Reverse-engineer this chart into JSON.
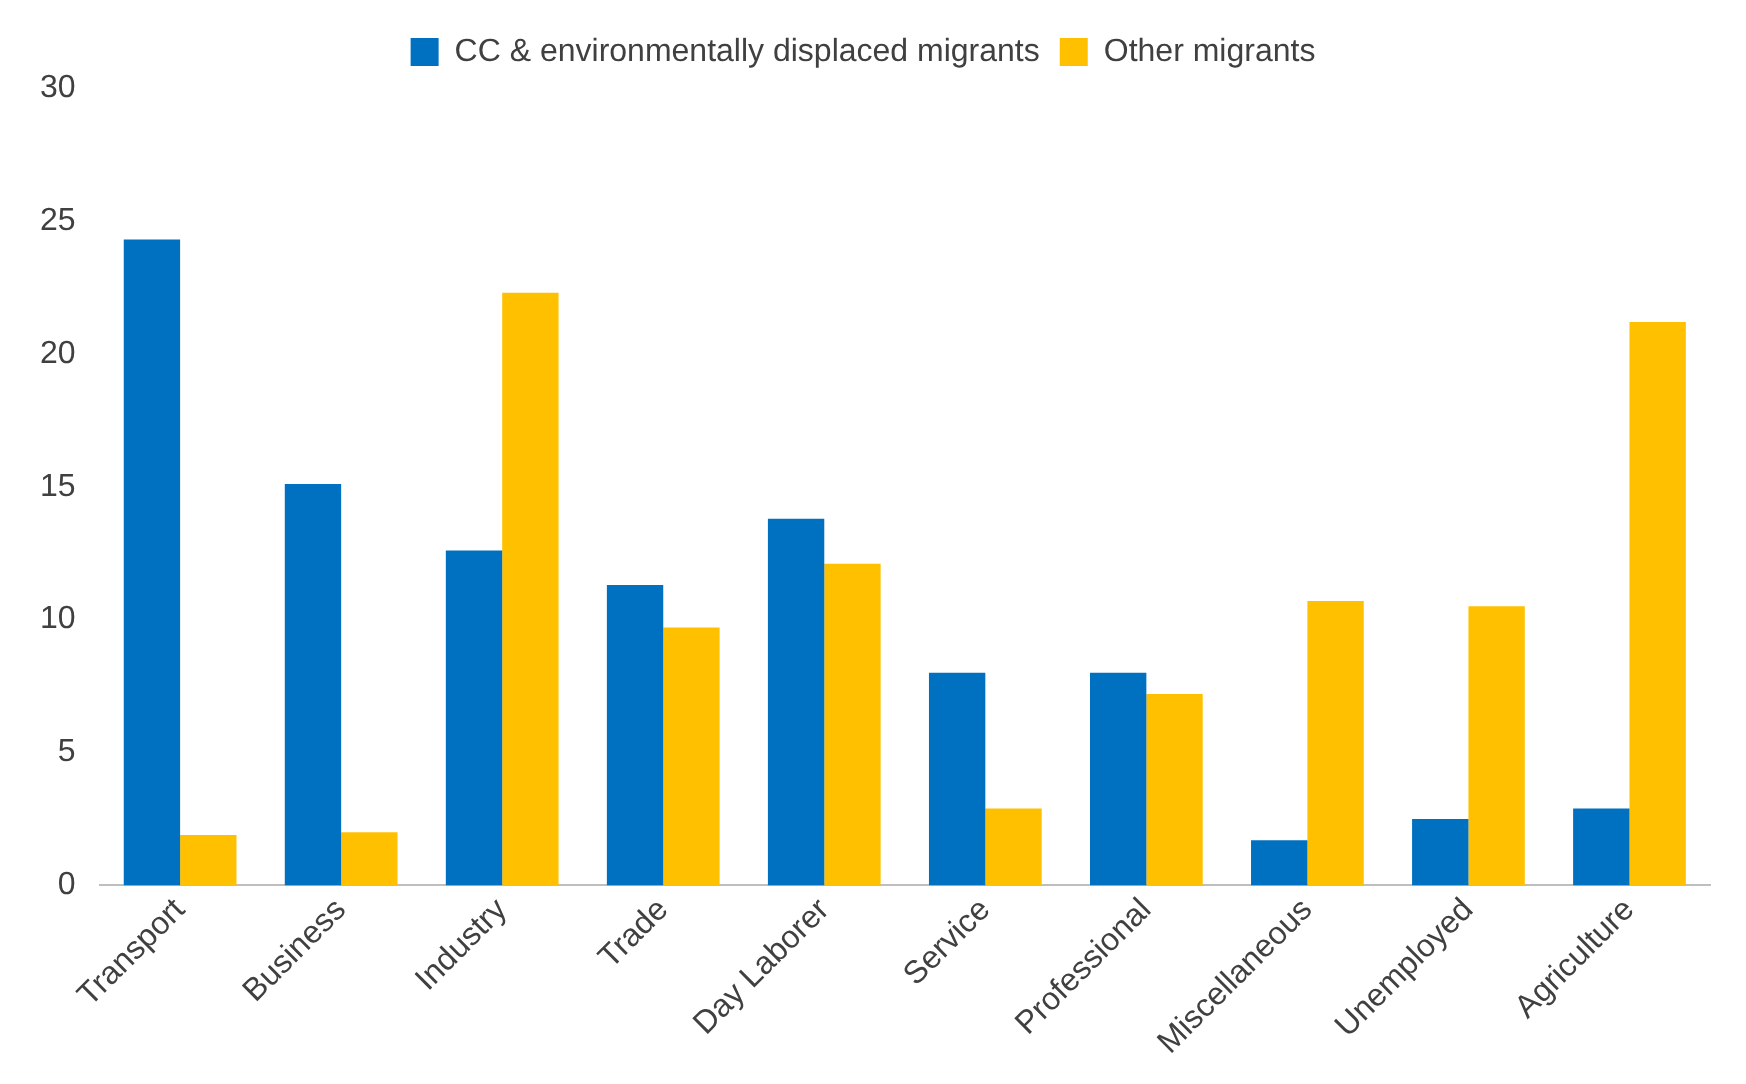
{
  "chart_data": {
    "type": "bar",
    "categories": [
      "Transport",
      "Business",
      "Industry",
      "Trade",
      "Day Laborer",
      "Service",
      "Professional",
      "Miscellaneous",
      "Unemployed",
      "Agriculture"
    ],
    "series": [
      {
        "name": "CC & environmentally displaced migrants",
        "color": "#0070c0",
        "values": [
          24.3,
          15.1,
          12.6,
          11.3,
          13.8,
          8.0,
          8.0,
          1.7,
          2.5,
          2.9
        ]
      },
      {
        "name": "Other migrants",
        "color": "#ffc000",
        "values": [
          1.9,
          2.0,
          22.3,
          9.7,
          12.1,
          2.9,
          7.2,
          10.7,
          10.5,
          21.2
        ]
      }
    ],
    "ylim": [
      0,
      30
    ],
    "yticks": [
      0,
      5,
      10,
      15,
      20,
      25,
      30
    ],
    "grid": false,
    "legend": "top"
  }
}
